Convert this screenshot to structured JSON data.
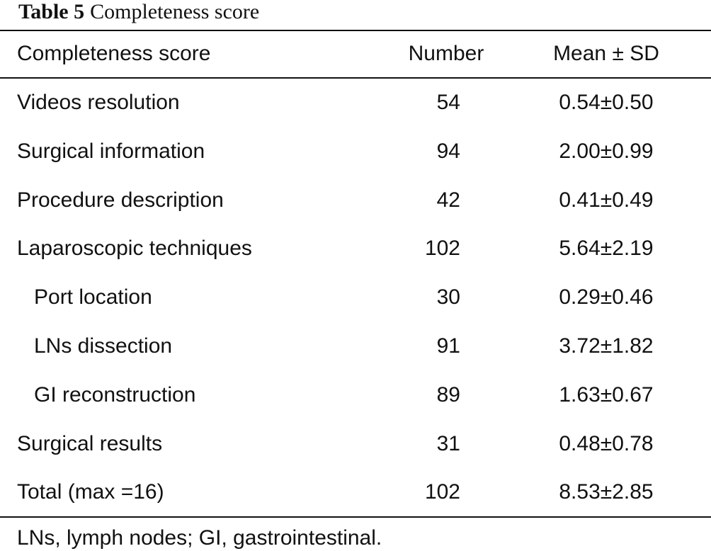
{
  "caption": {
    "label": "Table 5",
    "title": "Completeness score"
  },
  "headers": {
    "name": "Completeness score",
    "number": "Number",
    "mean": "Mean ± SD"
  },
  "rows": [
    {
      "name": "Videos resolution",
      "number": "54",
      "mean": "0.54±0.50"
    },
    {
      "name": "Surgical information",
      "number": "94",
      "mean": "2.00±0.99"
    },
    {
      "name": "Procedure description",
      "number": "42",
      "mean": "0.41±0.49"
    },
    {
      "name": "Laparoscopic techniques",
      "number": "102",
      "mean": "5.64±2.19"
    },
    {
      "name": "Port location",
      "number": "30",
      "mean": "0.29±0.46"
    },
    {
      "name": "LNs dissection",
      "number": "91",
      "mean": "3.72±1.82"
    },
    {
      "name": "GI reconstruction",
      "number": "89",
      "mean": "1.63±0.67"
    },
    {
      "name": "Surgical results",
      "number": "31",
      "mean": "0.48±0.78"
    },
    {
      "name": "Total (max =16)",
      "number": "102",
      "mean": "8.53±2.85"
    }
  ],
  "footnote": "LNs, lymph nodes; GI, gastrointestinal."
}
